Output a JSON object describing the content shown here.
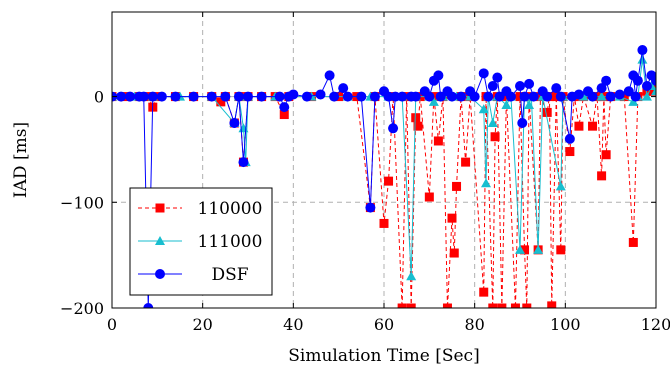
{
  "chart_data": {
    "type": "line",
    "title": "",
    "xlabel": "Simulation Time [Sec]",
    "ylabel": "IAD [ms]",
    "xlim": [
      0,
      120
    ],
    "ylim": [
      -200,
      80
    ],
    "xticks": [
      0,
      20,
      40,
      60,
      80,
      100,
      120
    ],
    "yticks": [
      -200,
      -100,
      0
    ],
    "ytick_labels": [
      "−200",
      "−100",
      "0"
    ],
    "grid": true,
    "legend_position": "bottom-left",
    "series": [
      {
        "name": "110000",
        "color": "#ff0000",
        "marker": "square",
        "line_style": "dashed",
        "points": [
          [
            0,
            0
          ],
          [
            3,
            0
          ],
          [
            6,
            0
          ],
          [
            8,
            0
          ],
          [
            9,
            -10
          ],
          [
            10,
            0
          ],
          [
            14,
            0
          ],
          [
            18,
            0
          ],
          [
            22,
            0
          ],
          [
            24,
            -5
          ],
          [
            25,
            0
          ],
          [
            27,
            -25
          ],
          [
            28,
            0
          ],
          [
            29,
            -62
          ],
          [
            30,
            0
          ],
          [
            33,
            0
          ],
          [
            36,
            0
          ],
          [
            38,
            -17
          ],
          [
            39,
            0
          ],
          [
            44,
            0
          ],
          [
            50,
            0
          ],
          [
            54,
            0
          ],
          [
            57,
            -105
          ],
          [
            58,
            0
          ],
          [
            60,
            -120
          ],
          [
            61,
            -80
          ],
          [
            62,
            0
          ],
          [
            64,
            -200
          ],
          [
            65,
            0
          ],
          [
            66,
            -200
          ],
          [
            67,
            -20
          ],
          [
            67.5,
            -28
          ],
          [
            68,
            0
          ],
          [
            70,
            -95
          ],
          [
            71,
            0
          ],
          [
            72,
            -42
          ],
          [
            73,
            0
          ],
          [
            74,
            -200
          ],
          [
            75,
            -115
          ],
          [
            75.5,
            -148
          ],
          [
            76,
            -85
          ],
          [
            77,
            0
          ],
          [
            78,
            -62
          ],
          [
            79,
            0
          ],
          [
            82,
            -185
          ],
          [
            82.5,
            0
          ],
          [
            84,
            -200
          ],
          [
            84.5,
            -38
          ],
          [
            85,
            0
          ],
          [
            86,
            -200
          ],
          [
            87,
            0
          ],
          [
            89,
            -200
          ],
          [
            90,
            0
          ],
          [
            91,
            -145
          ],
          [
            91.5,
            -200
          ],
          [
            92,
            0
          ],
          [
            94,
            -145
          ],
          [
            94.5,
            0
          ],
          [
            96,
            -15
          ],
          [
            96.5,
            0
          ],
          [
            97,
            -198
          ],
          [
            98,
            0
          ],
          [
            99,
            -145
          ],
          [
            99.5,
            0
          ],
          [
            101,
            -52
          ],
          [
            102,
            0
          ],
          [
            103,
            -28
          ],
          [
            104,
            0
          ],
          [
            106,
            -28
          ],
          [
            107,
            0
          ],
          [
            108,
            -75
          ],
          [
            108.5,
            0
          ],
          [
            109,
            -55
          ],
          [
            110,
            0
          ],
          [
            113,
            0
          ],
          [
            115,
            -138
          ],
          [
            116,
            0
          ],
          [
            118,
            5
          ],
          [
            119,
            5
          ],
          [
            120,
            8
          ]
        ]
      },
      {
        "name": "111000",
        "color": "#17becf",
        "marker": "triangle",
        "line_style": "solid",
        "points": [
          [
            0,
            0
          ],
          [
            5,
            0
          ],
          [
            9,
            0
          ],
          [
            15,
            0
          ],
          [
            22,
            0
          ],
          [
            27,
            -25
          ],
          [
            28,
            0
          ],
          [
            29,
            -30
          ],
          [
            29.5,
            -62
          ],
          [
            30,
            0
          ],
          [
            36,
            0
          ],
          [
            44,
            0
          ],
          [
            52,
            0
          ],
          [
            57,
            0
          ],
          [
            61,
            0
          ],
          [
            64,
            0
          ],
          [
            66,
            -170
          ],
          [
            67,
            0
          ],
          [
            70,
            0
          ],
          [
            71,
            -5
          ],
          [
            73,
            0
          ],
          [
            76,
            0
          ],
          [
            79,
            0
          ],
          [
            82,
            -12
          ],
          [
            82.5,
            -82
          ],
          [
            83,
            0
          ],
          [
            84,
            -25
          ],
          [
            85,
            0
          ],
          [
            87,
            -8
          ],
          [
            88,
            0
          ],
          [
            90,
            -145
          ],
          [
            91,
            0
          ],
          [
            92,
            -8
          ],
          [
            92.5,
            0
          ],
          [
            94,
            -145
          ],
          [
            95,
            0
          ],
          [
            99,
            -85
          ],
          [
            99.5,
            0
          ],
          [
            104,
            0
          ],
          [
            108,
            0
          ],
          [
            112,
            0
          ],
          [
            115,
            -5
          ],
          [
            116,
            0
          ],
          [
            117,
            35
          ],
          [
            118,
            0
          ],
          [
            119,
            10
          ],
          [
            120,
            5
          ]
        ]
      },
      {
        "name": "DSF",
        "color": "#0000ff",
        "marker": "circle",
        "line_style": "solid",
        "points": [
          [
            0,
            0
          ],
          [
            2,
            0
          ],
          [
            4,
            0
          ],
          [
            6,
            0
          ],
          [
            7,
            0
          ],
          [
            8,
            -200
          ],
          [
            9,
            0
          ],
          [
            11,
            0
          ],
          [
            14,
            0
          ],
          [
            18,
            0
          ],
          [
            22,
            0
          ],
          [
            25,
            0
          ],
          [
            27,
            -25
          ],
          [
            28,
            0
          ],
          [
            29,
            -62
          ],
          [
            30,
            0
          ],
          [
            33,
            0
          ],
          [
            37,
            0
          ],
          [
            38,
            -10
          ],
          [
            39,
            0
          ],
          [
            40,
            2
          ],
          [
            43,
            0
          ],
          [
            46,
            2
          ],
          [
            48,
            20
          ],
          [
            49,
            0
          ],
          [
            51,
            8
          ],
          [
            52,
            0
          ],
          [
            55,
            0
          ],
          [
            57,
            -105
          ],
          [
            58,
            0
          ],
          [
            60,
            5
          ],
          [
            61,
            0
          ],
          [
            62,
            -30
          ],
          [
            62.5,
            0
          ],
          [
            64,
            0
          ],
          [
            66,
            0
          ],
          [
            67,
            0
          ],
          [
            69,
            5
          ],
          [
            70,
            0
          ],
          [
            71,
            15
          ],
          [
            72,
            20
          ],
          [
            72.5,
            0
          ],
          [
            74,
            5
          ],
          [
            75,
            0
          ],
          [
            77,
            0
          ],
          [
            79,
            5
          ],
          [
            80,
            0
          ],
          [
            82,
            22
          ],
          [
            83,
            0
          ],
          [
            84,
            10
          ],
          [
            85,
            18
          ],
          [
            85.5,
            0
          ],
          [
            87,
            5
          ],
          [
            88,
            0
          ],
          [
            90,
            10
          ],
          [
            90.5,
            -25
          ],
          [
            91,
            0
          ],
          [
            92,
            12
          ],
          [
            93,
            0
          ],
          [
            95,
            5
          ],
          [
            96,
            0
          ],
          [
            98,
            8
          ],
          [
            99,
            0
          ],
          [
            101,
            -40
          ],
          [
            101.5,
            0
          ],
          [
            103,
            2
          ],
          [
            105,
            5
          ],
          [
            106,
            0
          ],
          [
            108,
            8
          ],
          [
            109,
            15
          ],
          [
            110,
            0
          ],
          [
            112,
            2
          ],
          [
            114,
            5
          ],
          [
            115,
            20
          ],
          [
            115.5,
            0
          ],
          [
            116,
            15
          ],
          [
            117,
            44
          ],
          [
            118,
            10
          ],
          [
            119,
            20
          ],
          [
            120,
            15
          ]
        ]
      }
    ]
  }
}
